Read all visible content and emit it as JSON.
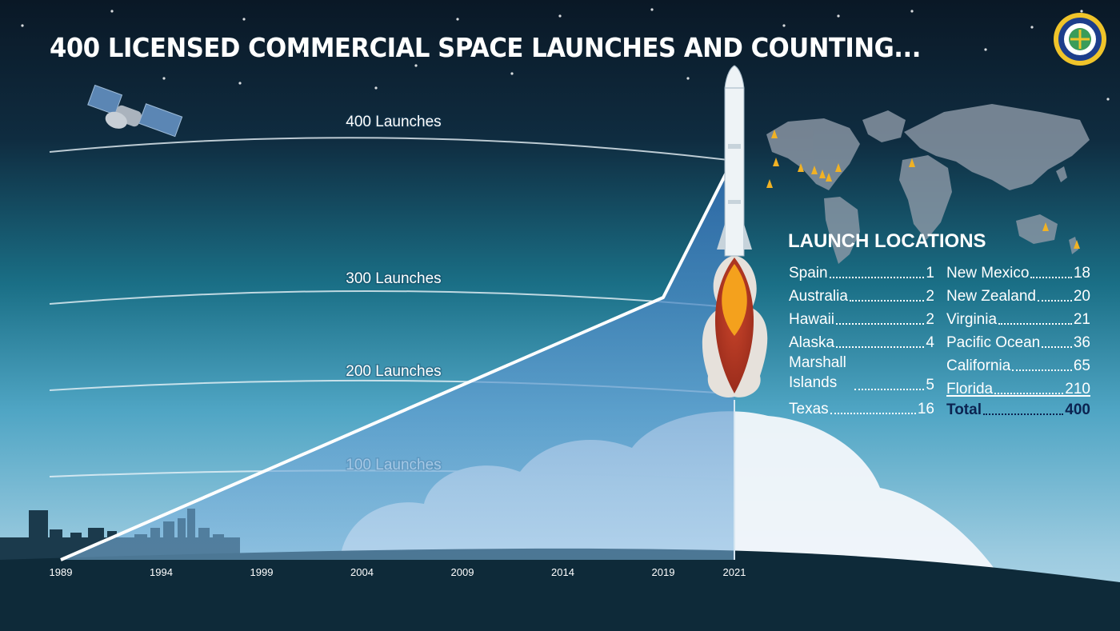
{
  "title": "400 LICENSED COMMERCIAL SPACE LAUNCHES AND COUNTING...",
  "colors": {
    "background_top": "#0b1d2e",
    "background_mid": "#1c7f93",
    "background_low": "#8fc7dc",
    "ground": "#0f2b3a",
    "area_fill": "#3f86c8",
    "line": "#ffffff",
    "flame_outer": "#a8321f",
    "flame_inner": "#f6a01c",
    "pin": "#f1b224",
    "total_text": "#0b2350"
  },
  "icons": [
    "satellite-icon",
    "rocket-icon",
    "world-map-icon",
    "launch-pin-icon",
    "city-skyline-icon",
    "cloud-icon",
    "faa-seal-icon"
  ],
  "chart_data": {
    "type": "area",
    "x_tick_labels": [
      "1989",
      "1994",
      "1999",
      "2004",
      "2009",
      "2014",
      "2019",
      "2021"
    ],
    "x": [
      1989,
      2019,
      2021
    ],
    "y": [
      0,
      300,
      400
    ],
    "xlim": [
      1989,
      2021
    ],
    "ylim": [
      0,
      400
    ],
    "reference_lines": [
      {
        "value": 100,
        "label": "100 Launches"
      },
      {
        "value": 200,
        "label": "200 Launches"
      },
      {
        "value": 300,
        "label": "300 Launches"
      },
      {
        "value": 400,
        "label": "400 Launches"
      }
    ]
  },
  "launch_locations": {
    "title": "LAUNCH LOCATIONS",
    "left_column": [
      {
        "name": "Spain",
        "value": "1"
      },
      {
        "name": "Australia",
        "value": "2"
      },
      {
        "name": "Hawaii",
        "value": "2"
      },
      {
        "name": "Alaska",
        "value": "4"
      },
      {
        "name": "Marshall Islands",
        "value": "5"
      },
      {
        "name": "Texas",
        "value": "16"
      }
    ],
    "right_column": [
      {
        "name": "New Mexico",
        "value": "18"
      },
      {
        "name": "New Zealand",
        "value": "20"
      },
      {
        "name": "Virginia",
        "value": "21"
      },
      {
        "name": "Pacific Ocean",
        "value": "36"
      },
      {
        "name": "California",
        "value": "65"
      },
      {
        "name": "Florida",
        "value": "210"
      }
    ],
    "total": {
      "name": "Total",
      "value": "400"
    }
  }
}
